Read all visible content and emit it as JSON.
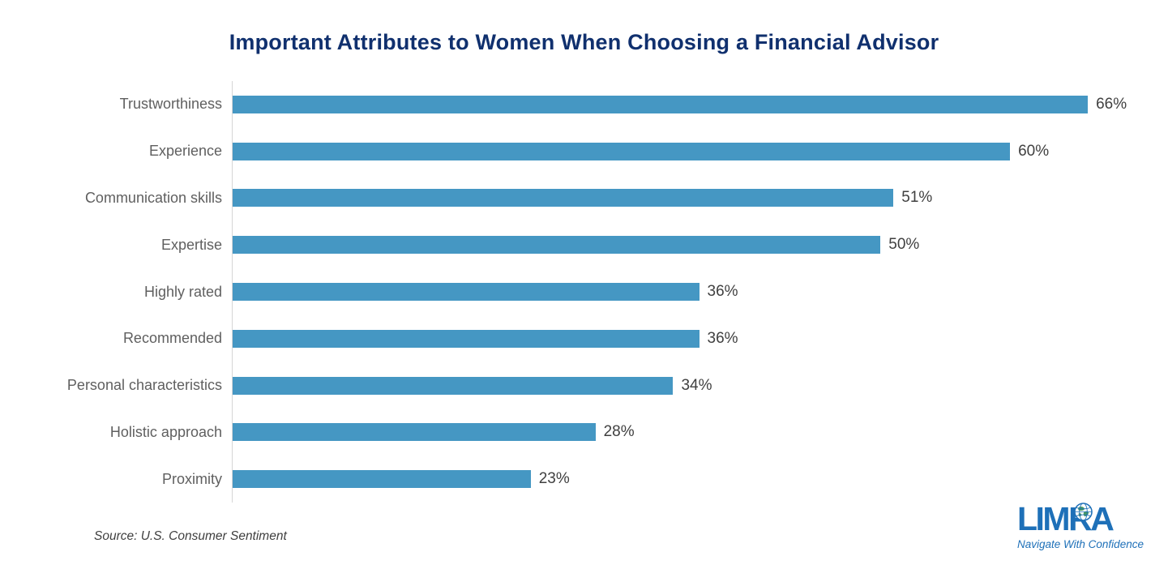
{
  "title": "Important Attributes to Women When Choosing a Financial Advisor",
  "chart_data": {
    "type": "bar",
    "orientation": "horizontal",
    "title": "Important Attributes to Women When Choosing a Financial Advisor",
    "categories": [
      "Trustworthiness",
      "Experience",
      "Communication skills",
      "Expertise",
      "Highly rated",
      "Recommended",
      "Personal characteristics",
      "Holistic approach",
      "Proximity"
    ],
    "values": [
      66,
      60,
      51,
      50,
      36,
      36,
      34,
      28,
      23
    ],
    "value_labels": [
      "66%",
      "60%",
      "51%",
      "50%",
      "36%",
      "36%",
      "34%",
      "28%",
      "23%"
    ],
    "xlabel": "",
    "ylabel": "",
    "xlim": [
      0,
      70
    ],
    "grid": false,
    "legend": false,
    "data_labels_position": "outside-end"
  },
  "footer": {
    "source": "Source: U.S. Consumer Sentiment"
  },
  "logo": {
    "text": "LIMRA",
    "tagline": "Navigate With Confidence",
    "globe_icon": "globe-icon"
  },
  "colors": {
    "bar": "#4597c3",
    "title": "#10306e",
    "category_label": "#5f5f5f",
    "value_label": "#404040",
    "axis_line": "#d6d6d6",
    "logo_blue": "#1e70b8",
    "globe_green": "#4a9a62",
    "background": "#ffffff"
  }
}
